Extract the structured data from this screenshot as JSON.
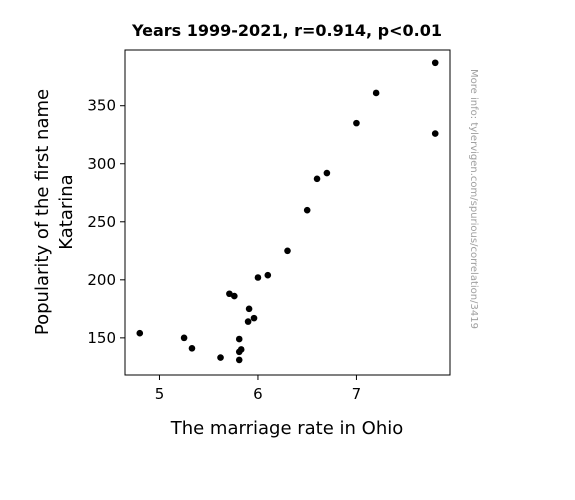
{
  "chart_data": {
    "type": "scatter",
    "title": "Years 1999-2021, r=0.914, p<0.01",
    "xlabel": "The marriage rate in Ohio",
    "ylabel_lines": [
      "Popularity of the first name",
      "Katarina"
    ],
    "side_note": "More info: tylervigen.com/spurious/correlation/3419",
    "xlim": [
      4.65,
      7.95
    ],
    "ylim": [
      118,
      398
    ],
    "x_ticks": [
      5,
      6,
      7
    ],
    "y_ticks": [
      150,
      200,
      250,
      300,
      350
    ],
    "marker_color": "#000000",
    "grid": false,
    "points": [
      {
        "x": 4.8,
        "y": 154
      },
      {
        "x": 5.25,
        "y": 150
      },
      {
        "x": 5.33,
        "y": 141
      },
      {
        "x": 5.62,
        "y": 133
      },
      {
        "x": 5.71,
        "y": 188
      },
      {
        "x": 5.76,
        "y": 186
      },
      {
        "x": 5.81,
        "y": 149
      },
      {
        "x": 5.81,
        "y": 138
      },
      {
        "x": 5.81,
        "y": 131
      },
      {
        "x": 5.83,
        "y": 140
      },
      {
        "x": 5.9,
        "y": 164
      },
      {
        "x": 5.91,
        "y": 175
      },
      {
        "x": 5.96,
        "y": 167
      },
      {
        "x": 6.0,
        "y": 202
      },
      {
        "x": 6.1,
        "y": 204
      },
      {
        "x": 6.3,
        "y": 225
      },
      {
        "x": 6.5,
        "y": 260
      },
      {
        "x": 6.6,
        "y": 287
      },
      {
        "x": 6.7,
        "y": 292
      },
      {
        "x": 7.0,
        "y": 335
      },
      {
        "x": 7.2,
        "y": 361
      },
      {
        "x": 7.8,
        "y": 326
      },
      {
        "x": 7.8,
        "y": 387
      }
    ]
  }
}
